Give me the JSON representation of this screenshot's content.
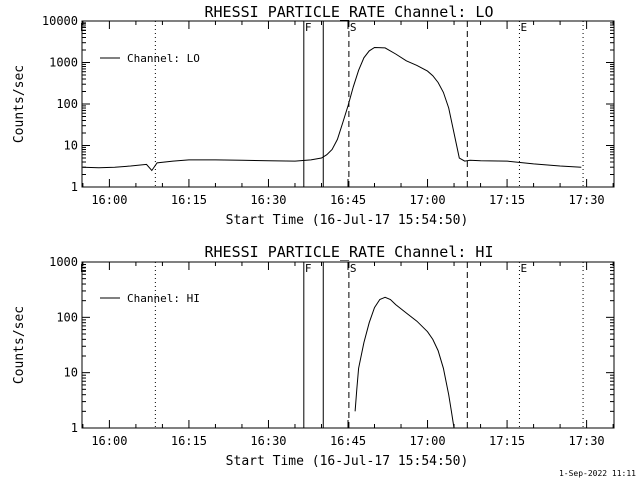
{
  "footer": "1-Sep-2022 11:11",
  "chart_data": [
    {
      "type": "line",
      "title": "RHESSI PARTICLE_RATE Channel: LO",
      "xlabel": "Start Time (16-Jul-17 15:54:50)",
      "ylabel": "Counts/sec",
      "yscale": "log",
      "ylim": [
        1,
        10000
      ],
      "y_ticks": [
        "1",
        "10",
        "100",
        "1000",
        "10000"
      ],
      "xlim": [
        "15:54:50",
        "17:35:10"
      ],
      "x_ticks": [
        "16:00",
        "16:15",
        "16:30",
        "16:45",
        "17:00",
        "17:15",
        "17:30"
      ],
      "legend": {
        "position": "top-left",
        "entries": [
          "Channel: LO"
        ]
      },
      "grid": false,
      "series": [
        {
          "name": "Channel: LO",
          "x": [
            "15:55",
            "15:58",
            "16:01",
            "16:04",
            "16:07",
            "16:08",
            "16:09",
            "16:12",
            "16:15",
            "16:20",
            "16:25",
            "16:30",
            "16:35",
            "16:38",
            "16:40",
            "16:41",
            "16:42",
            "16:43",
            "16:44",
            "16:45",
            "16:46",
            "16:47",
            "16:48",
            "16:49",
            "16:50",
            "16:52",
            "16:54",
            "16:56",
            "16:58",
            "17:00",
            "17:01",
            "17:02",
            "17:03",
            "17:04",
            "17:05",
            "17:06",
            "17:07",
            "17:08",
            "17:10",
            "17:15",
            "17:20",
            "17:25",
            "17:29"
          ],
          "values": [
            3,
            2.9,
            3,
            3.2,
            3.5,
            2.5,
            3.8,
            4.2,
            4.5,
            4.5,
            4.4,
            4.3,
            4.2,
            4.5,
            5,
            6,
            8,
            14,
            35,
            90,
            260,
            650,
            1300,
            1900,
            2300,
            2250,
            1600,
            1100,
            850,
            620,
            480,
            330,
            190,
            80,
            20,
            5,
            4.2,
            4.4,
            4.3,
            4.2,
            3.6,
            3.2,
            3
          ]
        }
      ],
      "markers": [
        {
          "label": "F",
          "time": "16:36:40",
          "style": "solid"
        },
        {
          "label": "",
          "time": "16:40:20",
          "style": "solid"
        },
        {
          "label": "S",
          "time": "16:45:10",
          "style": "dashed"
        },
        {
          "label": "",
          "time": "17:07:30",
          "style": "dashed"
        },
        {
          "label": "E",
          "time": "17:17:20",
          "style": "dotted"
        },
        {
          "label": "",
          "time": "16:08:40",
          "style": "dotted"
        },
        {
          "label": "",
          "time": "17:29:20",
          "style": "dotted"
        }
      ],
      "corner_marker": "E"
    },
    {
      "type": "line",
      "title": "RHESSI PARTICLE_RATE Channel: HI",
      "xlabel": "Start Time (16-Jul-17 15:54:50)",
      "ylabel": "Counts/sec",
      "yscale": "log",
      "ylim": [
        1,
        1000
      ],
      "y_ticks": [
        "1",
        "10",
        "100",
        "1000"
      ],
      "xlim": [
        "15:54:50",
        "17:35:10"
      ],
      "x_ticks": [
        "16:00",
        "16:15",
        "16:30",
        "16:45",
        "17:00",
        "17:15",
        "17:30"
      ],
      "legend": {
        "position": "top-left",
        "entries": [
          "Channel: HI"
        ]
      },
      "grid": false,
      "series": [
        {
          "name": "Channel: HI",
          "x": [
            "16:46:20",
            "16:46:40",
            "16:47",
            "16:48",
            "16:49",
            "16:50",
            "16:51",
            "16:52",
            "16:53",
            "16:54",
            "16:56",
            "16:58",
            "17:00",
            "17:01",
            "17:02",
            "17:03",
            "17:04",
            "17:04:30",
            "17:05"
          ],
          "values": [
            2,
            5,
            12,
            35,
            80,
            150,
            210,
            230,
            210,
            170,
            120,
            85,
            55,
            40,
            25,
            12,
            4,
            2,
            1
          ]
        }
      ],
      "markers": [
        {
          "label": "F",
          "time": "16:36:40",
          "style": "solid"
        },
        {
          "label": "",
          "time": "16:40:20",
          "style": "solid"
        },
        {
          "label": "S",
          "time": "16:45:10",
          "style": "dashed"
        },
        {
          "label": "",
          "time": "17:07:30",
          "style": "dashed"
        },
        {
          "label": "E",
          "time": "17:17:20",
          "style": "dotted"
        },
        {
          "label": "",
          "time": "16:08:40",
          "style": "dotted"
        },
        {
          "label": "",
          "time": "17:29:20",
          "style": "dotted"
        }
      ],
      "corner_marker": "E"
    }
  ]
}
